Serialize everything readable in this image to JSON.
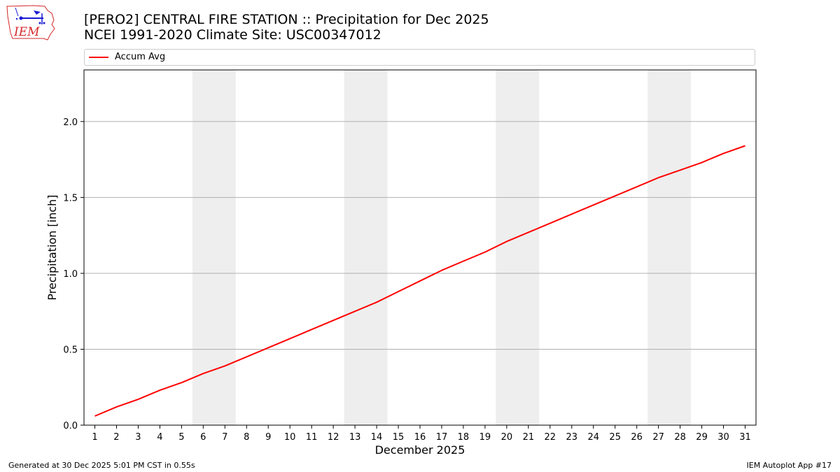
{
  "header": {
    "title_line1": "[PERO2] CENTRAL FIRE STATION :: Precipitation for Dec 2025",
    "title_line2": "NCEI 1991-2020 Climate Site: USC00347012",
    "logo_text": "IEM"
  },
  "footer": {
    "generated": "Generated at 30 Dec 2025 5:01 PM CST in 0.55s",
    "app": "IEM Autoplot App #17"
  },
  "colors": {
    "series": "#ff0000",
    "weekend_shade": "#eeeeee",
    "grid": "#b0b0b0",
    "logo_red": "#d62728",
    "logo_blue": "#1a1ad6"
  },
  "chart_data": {
    "type": "line",
    "title": "[PERO2] CENTRAL FIRE STATION :: Precipitation for Dec 2025",
    "subtitle": "NCEI 1991-2020 Climate Site: USC00347012",
    "xlabel": "December 2025",
    "ylabel": "Precipitation [inch]",
    "xlim": [
      0.5,
      31.5
    ],
    "ylim": [
      0,
      2.34
    ],
    "x_ticks": [
      1,
      2,
      3,
      4,
      5,
      6,
      7,
      8,
      9,
      10,
      11,
      12,
      13,
      14,
      15,
      16,
      17,
      18,
      19,
      20,
      21,
      22,
      23,
      24,
      25,
      26,
      27,
      28,
      29,
      30,
      31
    ],
    "y_ticks": [
      0.0,
      0.5,
      1.0,
      1.5,
      2.0
    ],
    "y_tick_labels": [
      "0.0",
      "0.5",
      "1.0",
      "1.5",
      "2.0"
    ],
    "grid": "y",
    "legend_position": "top",
    "weekend_spans": [
      [
        5.5,
        7.5
      ],
      [
        12.5,
        14.5
      ],
      [
        19.5,
        21.5
      ],
      [
        26.5,
        28.5
      ]
    ],
    "x": [
      1,
      2,
      3,
      4,
      5,
      6,
      7,
      8,
      9,
      10,
      11,
      12,
      13,
      14,
      15,
      16,
      17,
      18,
      19,
      20,
      21,
      22,
      23,
      24,
      25,
      26,
      27,
      28,
      29,
      30,
      31
    ],
    "series": [
      {
        "name": "Accum Avg",
        "color": "#ff0000",
        "values": [
          0.06,
          0.12,
          0.17,
          0.23,
          0.28,
          0.34,
          0.39,
          0.45,
          0.51,
          0.57,
          0.63,
          0.69,
          0.75,
          0.81,
          0.88,
          0.95,
          1.02,
          1.08,
          1.14,
          1.21,
          1.27,
          1.33,
          1.39,
          1.45,
          1.51,
          1.57,
          1.63,
          1.68,
          1.73,
          1.79,
          1.84
        ]
      }
    ]
  }
}
